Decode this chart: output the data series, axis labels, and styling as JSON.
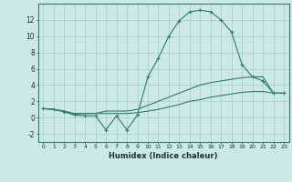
{
  "x": [
    0,
    1,
    2,
    3,
    4,
    5,
    6,
    7,
    8,
    9,
    10,
    11,
    12,
    13,
    14,
    15,
    16,
    17,
    18,
    19,
    20,
    21,
    22,
    23
  ],
  "line1": [
    1.1,
    1.0,
    0.7,
    0.3,
    0.2,
    0.2,
    -1.5,
    0.2,
    -1.5,
    0.3,
    5.0,
    7.3,
    10.0,
    11.9,
    13.0,
    13.2,
    13.0,
    12.0,
    10.5,
    6.5,
    5.0,
    4.5,
    3.0,
    3.0
  ],
  "line2": [
    1.1,
    1.0,
    0.8,
    0.5,
    0.5,
    0.5,
    0.8,
    0.8,
    0.8,
    1.0,
    1.5,
    2.0,
    2.5,
    3.0,
    3.5,
    4.0,
    4.3,
    4.5,
    4.7,
    4.9,
    5.0,
    5.0,
    3.0,
    3.0
  ],
  "line3": [
    1.1,
    1.0,
    0.8,
    0.4,
    0.5,
    0.5,
    0.5,
    0.5,
    0.5,
    0.6,
    0.8,
    1.0,
    1.3,
    1.6,
    2.0,
    2.2,
    2.5,
    2.7,
    2.9,
    3.1,
    3.2,
    3.2,
    3.0,
    3.0
  ],
  "line_color": "#2e7d6e",
  "bg_color": "#cce8e8",
  "grid_color": "#aacccc",
  "xlabel": "Humidex (Indice chaleur)",
  "ylim": [
    -3,
    14
  ],
  "xlim": [
    -0.5,
    23.5
  ],
  "yticks": [
    -2,
    0,
    2,
    4,
    6,
    8,
    10,
    12
  ],
  "xticks": [
    0,
    1,
    2,
    3,
    4,
    5,
    6,
    7,
    8,
    9,
    10,
    11,
    12,
    13,
    14,
    15,
    16,
    17,
    18,
    19,
    20,
    21,
    22,
    23
  ],
  "marker": "+"
}
